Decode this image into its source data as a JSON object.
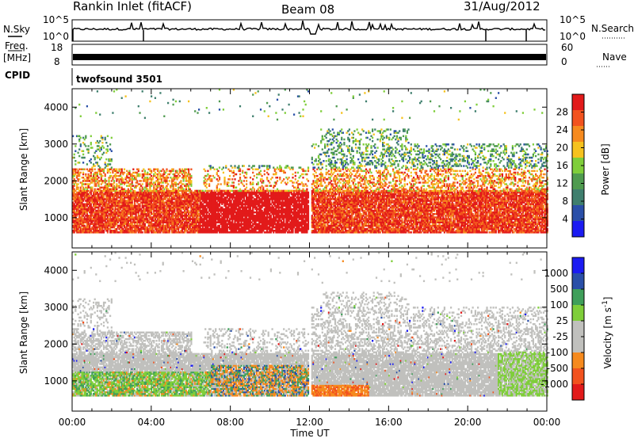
{
  "header": {
    "station": "Rankin Inlet (fitACF)",
    "beam": "Beam 08",
    "date": "31/Aug/2012"
  },
  "left_labels": {
    "nsky": "N.Sky",
    "freq_line1": "Freq.",
    "freq_line2": "[MHz]",
    "cpid": "CPID"
  },
  "right_labels": {
    "nsearch": "N.Search",
    "nave": "Nave"
  },
  "cpid_value": "twofsound 3501",
  "colors": {
    "power": [
      "#1b1bf2",
      "#2a4fa8",
      "#3f7f6e",
      "#4f9b4f",
      "#7fce3a",
      "#f6c21e",
      "#f68a1e",
      "#f2521e",
      "#e21a1a"
    ],
    "velocity": [
      "#e21a1a",
      "#f2521e",
      "#f68a1e",
      "#c0c0bd",
      "#c0c0bd",
      "#7fce3a",
      "#3f9f5a",
      "#2a4fa8",
      "#1b1bf2"
    ],
    "gray": "#c0c0bd"
  },
  "chart_data": [
    {
      "type": "line",
      "name": "noise-search-panel",
      "series": [
        {
          "name": "N.Sky"
        },
        {
          "name": "N.Search"
        }
      ],
      "y_left_ticks": [
        "10^5",
        "10^0"
      ],
      "y_right_ticks": [
        "10^5",
        "10^0"
      ],
      "x_range_hours": [
        0,
        24
      ]
    },
    {
      "type": "line",
      "name": "frequency-nave-panel",
      "y_left_ticks": [
        "18",
        "8"
      ],
      "y_right_ticks": [
        "60",
        "0"
      ],
      "x_range_hours": [
        0,
        24
      ]
    },
    {
      "type": "heatmap",
      "name": "power",
      "ylabel": "Slant Range [km]",
      "ylim": [
        180,
        4500
      ],
      "yticks": [
        1000,
        2000,
        3000,
        4000
      ],
      "xlim": [
        0,
        24
      ],
      "colorbar_label": "Power [dB]",
      "colorbar_ticks": [
        "4",
        "8",
        "12",
        "16",
        "20",
        "24",
        "28"
      ],
      "colorbar_range": [
        0,
        30
      ]
    },
    {
      "type": "heatmap",
      "name": "velocity",
      "ylabel": "Slant Range [km]",
      "ylim": [
        180,
        4500
      ],
      "yticks": [
        1000,
        2000,
        3000,
        4000
      ],
      "xlim": [
        0,
        24
      ],
      "xlabel": "Time UT",
      "xticks": [
        "00:00",
        "04:00",
        "08:00",
        "12:00",
        "16:00",
        "20:00",
        "00:00"
      ],
      "colorbar_label": "Velocity [m s^-1]",
      "colorbar_ticks": [
        "-1000",
        "-500",
        "-100",
        "-25",
        "25",
        "100",
        "500",
        "1000"
      ]
    }
  ]
}
